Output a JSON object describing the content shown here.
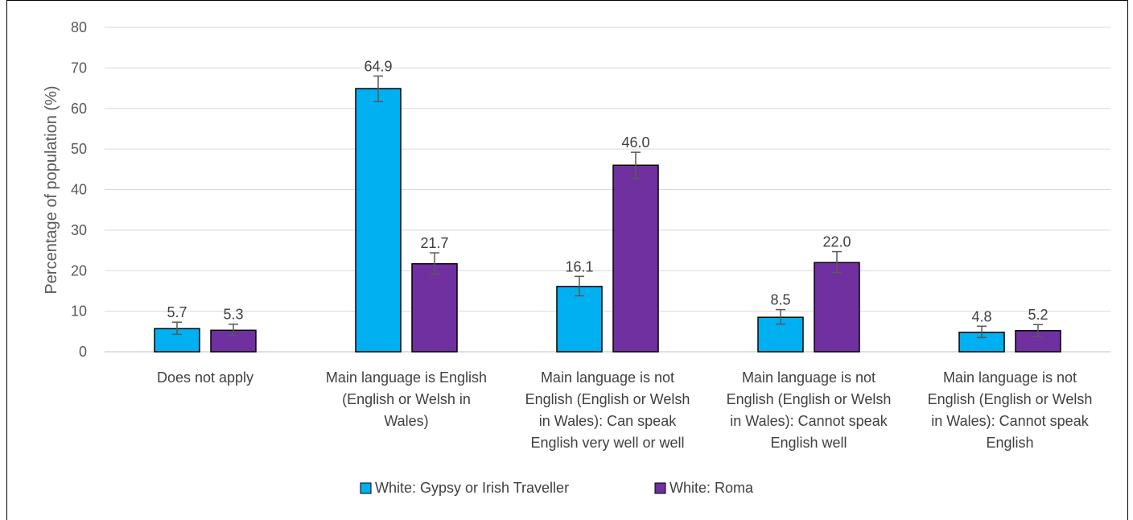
{
  "chart_data": {
    "type": "bar",
    "title": "",
    "xlabel": "",
    "ylabel": "Percentage of population (%)",
    "ylim": [
      0,
      80
    ],
    "yticks": [
      0,
      10,
      20,
      30,
      40,
      50,
      60,
      70,
      80
    ],
    "grid": true,
    "legend_position": "bottom",
    "error_bars": true,
    "categories": [
      [
        "Does not apply"
      ],
      [
        "Main language is English",
        "(English or Welsh in",
        "Wales)"
      ],
      [
        "Main language is not",
        "English (English or Welsh",
        "in Wales): Can speak",
        "English very well or well"
      ],
      [
        "Main language is not",
        "English (English or Welsh",
        "in Wales): Cannot speak",
        "English well"
      ],
      [
        "Main language is not",
        "English (English or Welsh",
        "in Wales): Cannot speak",
        "English"
      ]
    ],
    "series": [
      {
        "name": "White: Gypsy or Irish Traveller",
        "color": "#00b0f0",
        "values": [
          5.7,
          64.9,
          16.1,
          8.5,
          4.8
        ],
        "labels": [
          "5.7",
          "64.9",
          "16.1",
          "8.5",
          "4.8"
        ],
        "error_low": [
          4.3,
          61.7,
          13.8,
          6.8,
          3.5
        ],
        "error_high": [
          7.3,
          68.0,
          18.6,
          10.4,
          6.3
        ]
      },
      {
        "name": "White: Roma",
        "color": "#7030a0",
        "values": [
          5.3,
          21.7,
          46.0,
          22.0,
          5.2
        ],
        "labels": [
          "5.3",
          "21.7",
          "46.0",
          "22.0",
          "5.2"
        ],
        "error_low": [
          4.0,
          19.1,
          42.7,
          19.5,
          3.8
        ],
        "error_high": [
          6.8,
          24.4,
          49.2,
          24.7,
          6.7
        ]
      }
    ]
  }
}
